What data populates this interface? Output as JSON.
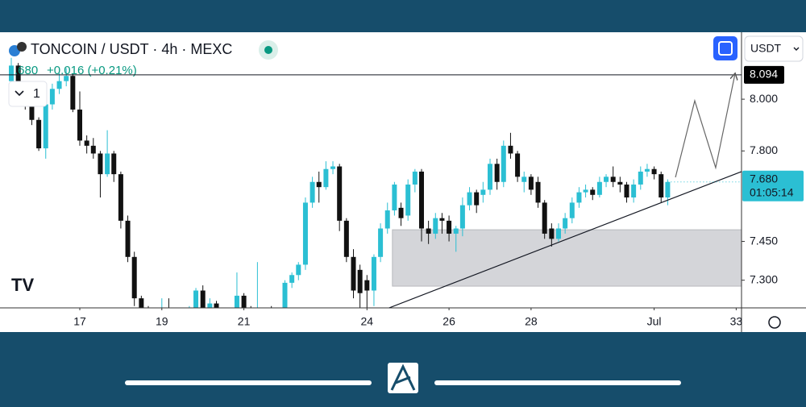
{
  "chart_data": {
    "type": "candlestick",
    "title": "TONCOIN / USDT · 4h · MEXC",
    "price_label": ".680",
    "change_label": "+0.016 (+0.21%)",
    "interval": "1",
    "currency": "USDT",
    "up_color": "#2bbfd3",
    "down_color": "#111111",
    "x": [
      15.33,
      15.5,
      15.67,
      15.83,
      16,
      16.17,
      16.33,
      16.5,
      16.67,
      16.83,
      17,
      17.17,
      17.33,
      17.5,
      17.67,
      17.83,
      18,
      18.17,
      18.33,
      18.5,
      18.67,
      18.83,
      19,
      19.17,
      19.33,
      19.5,
      19.67,
      19.83,
      20,
      20.17,
      20.33,
      20.5,
      20.67,
      20.83,
      21,
      21.17,
      21.33,
      21.5,
      21.67,
      21.83,
      22,
      22.17,
      22.33,
      22.5,
      22.67,
      22.83,
      23,
      23.17,
      23.33,
      23.5,
      23.67,
      23.83,
      24,
      24.17,
      24.33,
      24.5,
      24.67,
      24.83,
      25,
      25.17,
      25.33,
      25.5,
      25.67,
      25.83,
      26,
      26.17,
      26.33,
      26.5,
      26.67,
      26.83,
      27,
      27.17,
      27.33,
      27.5,
      27.67,
      27.83,
      28,
      28.17,
      28.33,
      28.5,
      28.67,
      28.83,
      29,
      29.17,
      29.33,
      29.5,
      29.67,
      29.83,
      30,
      30.17,
      30.33,
      30.5,
      30.67,
      30.83,
      31,
      31.17,
      31.33
    ],
    "open": [
      8.07,
      8.13,
      8.01,
      7.98,
      7.92,
      7.81,
      7.98,
      8.04,
      8.07,
      8.09,
      7.96,
      7.84,
      7.82,
      7.79,
      7.71,
      7.79,
      7.71,
      7.53,
      7.39,
      7.23,
      7.19,
      7.15,
      7.13,
      7.15,
      7.12,
      7.11,
      7.14,
      7.18,
      7.26,
      7.19,
      7.21,
      7.17,
      7.15,
      7.16,
      7.24,
      7.19,
      7.17,
      7.18,
      7.17,
      7.16,
      7.18,
      7.29,
      7.32,
      7.36,
      7.6,
      7.68,
      7.66,
      7.73,
      7.74,
      7.53,
      7.39,
      7.34,
      7.3,
      7.26,
      7.39,
      7.5,
      7.57,
      7.58,
      7.55,
      7.67,
      7.72,
      7.5,
      7.48,
      7.54,
      7.53,
      7.48,
      7.5,
      7.59,
      7.64,
      7.63,
      7.65,
      7.75,
      7.68,
      7.82,
      7.79,
      7.68,
      7.7,
      7.68,
      7.6,
      7.5,
      7.46,
      7.5,
      7.54,
      7.6,
      7.64,
      7.65,
      7.63,
      7.68,
      7.7,
      7.68,
      7.67,
      7.62,
      7.67,
      7.72,
      7.73,
      7.71,
      7.62
    ],
    "high": [
      8.16,
      8.14,
      8.03,
      8.0,
      7.93,
      8.0,
      8.06,
      8.1,
      8.12,
      8.1,
      8.03,
      7.86,
      7.85,
      7.8,
      7.88,
      7.8,
      7.72,
      7.55,
      7.41,
      7.24,
      7.2,
      7.16,
      7.23,
      7.23,
      7.16,
      7.16,
      7.2,
      7.27,
      7.28,
      7.23,
      7.22,
      7.19,
      7.18,
      7.33,
      7.25,
      7.2,
      7.37,
      7.19,
      7.2,
      7.19,
      7.3,
      7.33,
      7.37,
      7.62,
      7.7,
      7.72,
      7.76,
      7.76,
      7.75,
      7.54,
      7.42,
      7.36,
      7.32,
      7.4,
      7.52,
      7.6,
      7.68,
      7.6,
      7.69,
      7.73,
      7.73,
      7.53,
      7.56,
      7.56,
      7.55,
      7.51,
      7.62,
      7.66,
      7.65,
      7.68,
      7.77,
      7.77,
      7.84,
      7.87,
      7.8,
      7.72,
      7.71,
      7.7,
      7.61,
      7.52,
      7.52,
      7.56,
      7.62,
      7.66,
      7.67,
      7.66,
      7.7,
      7.71,
      7.74,
      7.7,
      7.68,
      7.69,
      7.74,
      7.75,
      7.74,
      7.72,
      7.69
    ],
    "low": [
      8.05,
      7.98,
      7.96,
      7.9,
      7.8,
      7.77,
      7.96,
      8.02,
      8.05,
      7.95,
      7.82,
      7.79,
      7.77,
      7.62,
      7.7,
      7.68,
      7.5,
      7.37,
      7.2,
      7.12,
      7.1,
      7.08,
      7.1,
      7.1,
      7.09,
      7.08,
      7.12,
      7.16,
      7.15,
      7.15,
      7.12,
      7.1,
      7.1,
      7.14,
      7.15,
      7.12,
      7.13,
      7.11,
      7.12,
      7.13,
      7.17,
      7.27,
      7.3,
      7.34,
      7.58,
      7.6,
      7.65,
      7.71,
      7.49,
      7.37,
      7.23,
      7.19,
      7.19,
      7.2,
      7.37,
      7.48,
      7.55,
      7.51,
      7.53,
      7.64,
      7.45,
      7.44,
      7.46,
      7.48,
      7.45,
      7.41,
      7.47,
      7.57,
      7.56,
      7.6,
      7.63,
      7.65,
      7.66,
      7.77,
      7.68,
      7.64,
      7.63,
      7.58,
      7.46,
      7.43,
      7.45,
      7.48,
      7.52,
      7.58,
      7.62,
      7.61,
      7.62,
      7.66,
      7.66,
      7.64,
      7.6,
      7.6,
      7.65,
      7.7,
      7.69,
      7.6,
      7.59
    ],
    "close": [
      8.13,
      8.01,
      7.98,
      7.92,
      7.81,
      7.98,
      8.04,
      8.07,
      8.09,
      7.96,
      7.84,
      7.82,
      7.79,
      7.71,
      7.79,
      7.71,
      7.53,
      7.39,
      7.23,
      7.19,
      7.15,
      7.13,
      7.15,
      7.14,
      7.13,
      7.14,
      7.18,
      7.26,
      7.19,
      7.21,
      7.17,
      7.15,
      7.16,
      7.24,
      7.19,
      7.17,
      7.18,
      7.16,
      7.16,
      7.18,
      7.29,
      7.32,
      7.36,
      7.6,
      7.68,
      7.66,
      7.73,
      7.74,
      7.53,
      7.39,
      7.26,
      7.25,
      7.26,
      7.39,
      7.5,
      7.57,
      7.67,
      7.54,
      7.67,
      7.72,
      7.5,
      7.48,
      7.54,
      7.53,
      7.48,
      7.5,
      7.59,
      7.64,
      7.59,
      7.65,
      7.75,
      7.68,
      7.82,
      7.79,
      7.7,
      7.7,
      7.65,
      7.6,
      7.48,
      7.46,
      7.5,
      7.54,
      7.6,
      7.64,
      7.65,
      7.63,
      7.68,
      7.7,
      7.68,
      7.67,
      7.62,
      7.67,
      7.72,
      7.73,
      7.71,
      7.62,
      7.68
    ],
    "xlim": [
      15.055,
      33.13
    ],
    "xticks": [
      17,
      19,
      21,
      24,
      26,
      28,
      {
        "value": 31,
        "label": "Jul"
      },
      33
    ],
    "ylim": [
      7.193,
      8.259
    ],
    "yticks": [
      {
        "value": 8,
        "label": "8.000"
      },
      {
        "value": 7.8,
        "label": "7.800"
      },
      {
        "value": 7.45,
        "label": "7.450"
      },
      {
        "value": 7.3,
        "label": "7.300"
      }
    ],
    "hline": {
      "value": 8.094,
      "label": "8.094"
    },
    "last_price": {
      "value": 7.68,
      "label": "7.680"
    },
    "countdown": "01:05:14",
    "trendline": {
      "x": [
        24.54,
        33.13
      ],
      "y": [
        7.193,
        7.72
      ]
    },
    "zone": {
      "x": [
        24.62,
        33.13
      ],
      "y": [
        7.277,
        7.495
      ]
    },
    "projection": {
      "x": [
        31.52,
        31.99,
        32.5,
        32.97
      ],
      "y": [
        7.698,
        7.994,
        7.735,
        8.097
      ]
    }
  }
}
